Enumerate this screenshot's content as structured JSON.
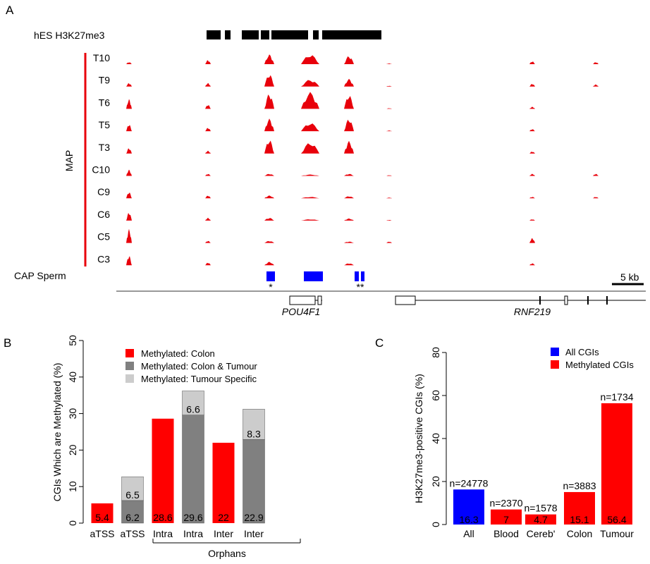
{
  "panel_a": {
    "label": "A",
    "h3k27_label": "hES H3K27me3",
    "map_label": "MAP",
    "tracks": [
      "T10",
      "T9",
      "T6",
      "T5",
      "T3",
      "C10",
      "C9",
      "C6",
      "C5",
      "C3"
    ],
    "cap_label": "CAP Sperm",
    "scale_label": "5 kb",
    "star1": "*",
    "star2": "**",
    "gene1": "POU4F1",
    "gene2": "RNF219",
    "colors": {
      "signal": "#e8000b",
      "cap": "#0000ff",
      "bar": "#000000"
    }
  },
  "chart_data": [
    {
      "panel": "B",
      "type": "bar",
      "stacked": true,
      "ylabel": "CGIs Which are Methylated (%)",
      "ylim": [
        0,
        50
      ],
      "yticks": [
        0,
        10,
        20,
        30,
        40,
        50
      ],
      "categories": [
        "aTSS",
        "aTSS",
        "Intra",
        "Intra",
        "Inter",
        "Inter"
      ],
      "group_label": "Orphans",
      "legend": [
        "Methylated: Colon",
        "Methylated: Colon & Tumour",
        "Methylated: Tumour Specific"
      ],
      "legend_colors": [
        "#ff0000",
        "#808080",
        "#cccccc"
      ],
      "legend_position": "top-right",
      "bars": [
        {
          "base": 5.4,
          "base_color": "#ff0000",
          "base_label": "5.4",
          "top": 0,
          "top_label": ""
        },
        {
          "base": 6.2,
          "base_color": "#808080",
          "base_label": "6.2",
          "top": 6.5,
          "top_label": "6.5"
        },
        {
          "base": 28.6,
          "base_color": "#ff0000",
          "base_label": "28.6",
          "top": 0,
          "top_label": ""
        },
        {
          "base": 29.6,
          "base_color": "#808080",
          "base_label": "29.6",
          "top": 6.6,
          "top_label": "6.6"
        },
        {
          "base": 22,
          "base_color": "#ff0000",
          "base_label": "22",
          "top": 0,
          "top_label": ""
        },
        {
          "base": 22.9,
          "base_color": "#808080",
          "base_label": "22.9",
          "top": 8.3,
          "top_label": "8.3"
        }
      ]
    },
    {
      "panel": "C",
      "type": "bar",
      "ylabel": "H3K27me3-positive CGIs (%)",
      "ylim": [
        0,
        80
      ],
      "yticks": [
        0,
        20,
        40,
        60,
        80
      ],
      "categories": [
        "All",
        "Blood",
        "Cereb'",
        "Colon",
        "Tumour"
      ],
      "values": [
        16.3,
        7,
        4.7,
        15.1,
        56.4
      ],
      "value_labels": [
        "16.3",
        "7",
        "4.7",
        "15.1",
        "56.4"
      ],
      "n_labels": [
        "n=24778",
        "n=2370",
        "n=1578",
        "n=3883",
        "n=1734"
      ],
      "colors": [
        "#0000ff",
        "#ff0000",
        "#ff0000",
        "#ff0000",
        "#ff0000"
      ],
      "legend": [
        "All CGIs",
        "Methylated CGIs"
      ],
      "legend_colors": [
        "#0000ff",
        "#ff0000"
      ],
      "legend_position": "top-right"
    }
  ],
  "panel_labels": {
    "b": "B",
    "c": "C"
  }
}
